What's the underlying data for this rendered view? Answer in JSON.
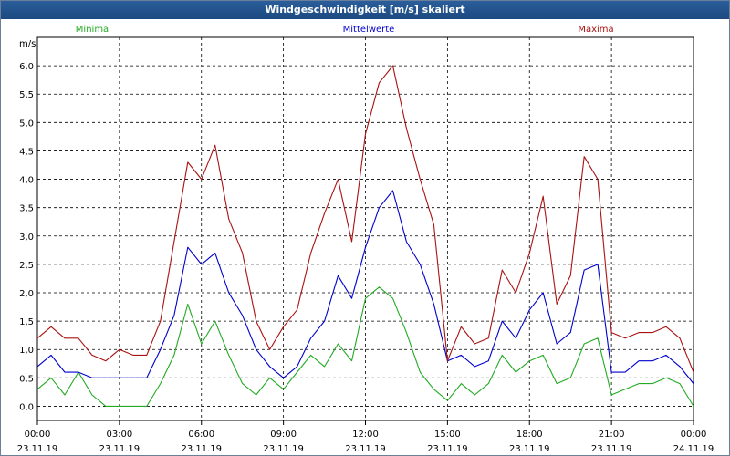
{
  "window": {
    "title": "Windgeschwindigkeit [m/s] skaliert"
  },
  "colors": {
    "min": "#22aa22",
    "mean": "#0000cc",
    "max": "#aa1111",
    "grid": "#000000",
    "frame": "#000000"
  },
  "chart_data": {
    "type": "line",
    "title": "Windgeschwindigkeit [m/s] skaliert",
    "ylabel": "m/s",
    "ylim": [
      -0.25,
      6.5
    ],
    "xlim": [
      0,
      24
    ],
    "grid": true,
    "legend_placement": "top",
    "yticks": [
      "0,0",
      "0,5",
      "1,0",
      "1,5",
      "2,0",
      "2,5",
      "3,0",
      "3,5",
      "4,0",
      "4,5",
      "5,0",
      "5,5",
      "6,0"
    ],
    "ytick_values": [
      0,
      0.5,
      1,
      1.5,
      2,
      2.5,
      3,
      3.5,
      4,
      4.5,
      5,
      5.5,
      6
    ],
    "xticks": [
      {
        "time": "00:00",
        "date": "23.11.19"
      },
      {
        "time": "03:00",
        "date": "23.11.19"
      },
      {
        "time": "06:00",
        "date": "23.11.19"
      },
      {
        "time": "09:00",
        "date": "23.11.19"
      },
      {
        "time": "12:00",
        "date": "23.11.19"
      },
      {
        "time": "15:00",
        "date": "23.11.19"
      },
      {
        "time": "18:00",
        "date": "23.11.19"
      },
      {
        "time": "21:00",
        "date": "23.11.19"
      },
      {
        "time": "00:00",
        "date": "24.11.19"
      }
    ],
    "xtick_hours": [
      0,
      3,
      6,
      9,
      12,
      15,
      18,
      21,
      24
    ],
    "series": [
      {
        "name": "Minima",
        "color": "#22aa22",
        "hours": [
          0,
          0.5,
          1,
          1.5,
          2,
          2.5,
          3,
          3.5,
          4,
          4.5,
          5,
          5.5,
          6,
          6.5,
          7,
          7.5,
          8,
          8.5,
          9,
          9.5,
          10,
          10.5,
          11,
          11.5,
          12,
          12.5,
          13,
          13.5,
          14,
          14.5,
          15,
          15.5,
          16,
          16.5,
          17,
          17.5,
          18,
          18.5,
          19,
          19.5,
          20,
          20.5,
          21,
          21.5,
          22,
          22.5,
          23,
          23.5,
          24
        ],
        "values": [
          0.3,
          0.5,
          0.2,
          0.6,
          0.2,
          0,
          0,
          0,
          0,
          0.4,
          0.9,
          1.8,
          1.1,
          1.5,
          0.9,
          0.4,
          0.2,
          0.5,
          0.3,
          0.6,
          0.9,
          0.7,
          1.1,
          0.8,
          1.9,
          2.1,
          1.9,
          1.3,
          0.6,
          0.3,
          0.1,
          0.4,
          0.2,
          0.4,
          0.9,
          0.6,
          0.8,
          0.9,
          0.4,
          0.5,
          1.1,
          1.2,
          0.2,
          0.3,
          0.4,
          0.4,
          0.5,
          0.4,
          0
        ]
      },
      {
        "name": "Mittelwerte",
        "color": "#0000cc",
        "hours": [
          0,
          0.5,
          1,
          1.5,
          2,
          2.5,
          3,
          3.5,
          4,
          4.5,
          5,
          5.5,
          6,
          6.5,
          7,
          7.5,
          8,
          8.5,
          9,
          9.5,
          10,
          10.5,
          11,
          11.5,
          12,
          12.5,
          13,
          13.5,
          14,
          14.5,
          15,
          15.5,
          16,
          16.5,
          17,
          17.5,
          18,
          18.5,
          19,
          19.5,
          20,
          20.5,
          21,
          21.5,
          22,
          22.5,
          23,
          23.5,
          24
        ],
        "values": [
          0.7,
          0.9,
          0.6,
          0.6,
          0.5,
          0.5,
          0.5,
          0.5,
          0.5,
          1.0,
          1.6,
          2.8,
          2.5,
          2.7,
          2.0,
          1.6,
          1.0,
          0.7,
          0.5,
          0.7,
          1.2,
          1.5,
          2.3,
          1.9,
          2.8,
          3.5,
          3.8,
          2.9,
          2.5,
          1.8,
          0.8,
          0.9,
          0.7,
          0.8,
          1.5,
          1.2,
          1.7,
          2.0,
          1.1,
          1.3,
          2.4,
          2.5,
          0.6,
          0.6,
          0.8,
          0.8,
          0.9,
          0.7,
          0.4
        ]
      },
      {
        "name": "Maxima",
        "color": "#aa1111",
        "hours": [
          0,
          0.5,
          1,
          1.5,
          2,
          2.5,
          3,
          3.5,
          4,
          4.5,
          5,
          5.5,
          6,
          6.5,
          7,
          7.5,
          8,
          8.5,
          9,
          9.5,
          10,
          10.5,
          11,
          11.5,
          12,
          12.5,
          13,
          13.5,
          14,
          14.5,
          15,
          15.5,
          16,
          16.5,
          17,
          17.5,
          18,
          18.5,
          19,
          19.5,
          20,
          20.5,
          21,
          21.5,
          22,
          22.5,
          23,
          23.5,
          24
        ],
        "values": [
          1.2,
          1.4,
          1.2,
          1.2,
          0.9,
          0.8,
          1.0,
          0.9,
          0.9,
          1.5,
          2.9,
          4.3,
          4.0,
          4.6,
          3.3,
          2.7,
          1.5,
          1.0,
          1.4,
          1.7,
          2.7,
          3.4,
          4.0,
          2.9,
          4.8,
          5.7,
          6.0,
          4.9,
          4.0,
          3.2,
          0.8,
          1.4,
          1.1,
          1.2,
          2.4,
          2.0,
          2.7,
          3.7,
          1.8,
          2.3,
          4.4,
          4.0,
          1.3,
          1.2,
          1.3,
          1.3,
          1.4,
          1.2,
          0.6
        ]
      }
    ]
  }
}
